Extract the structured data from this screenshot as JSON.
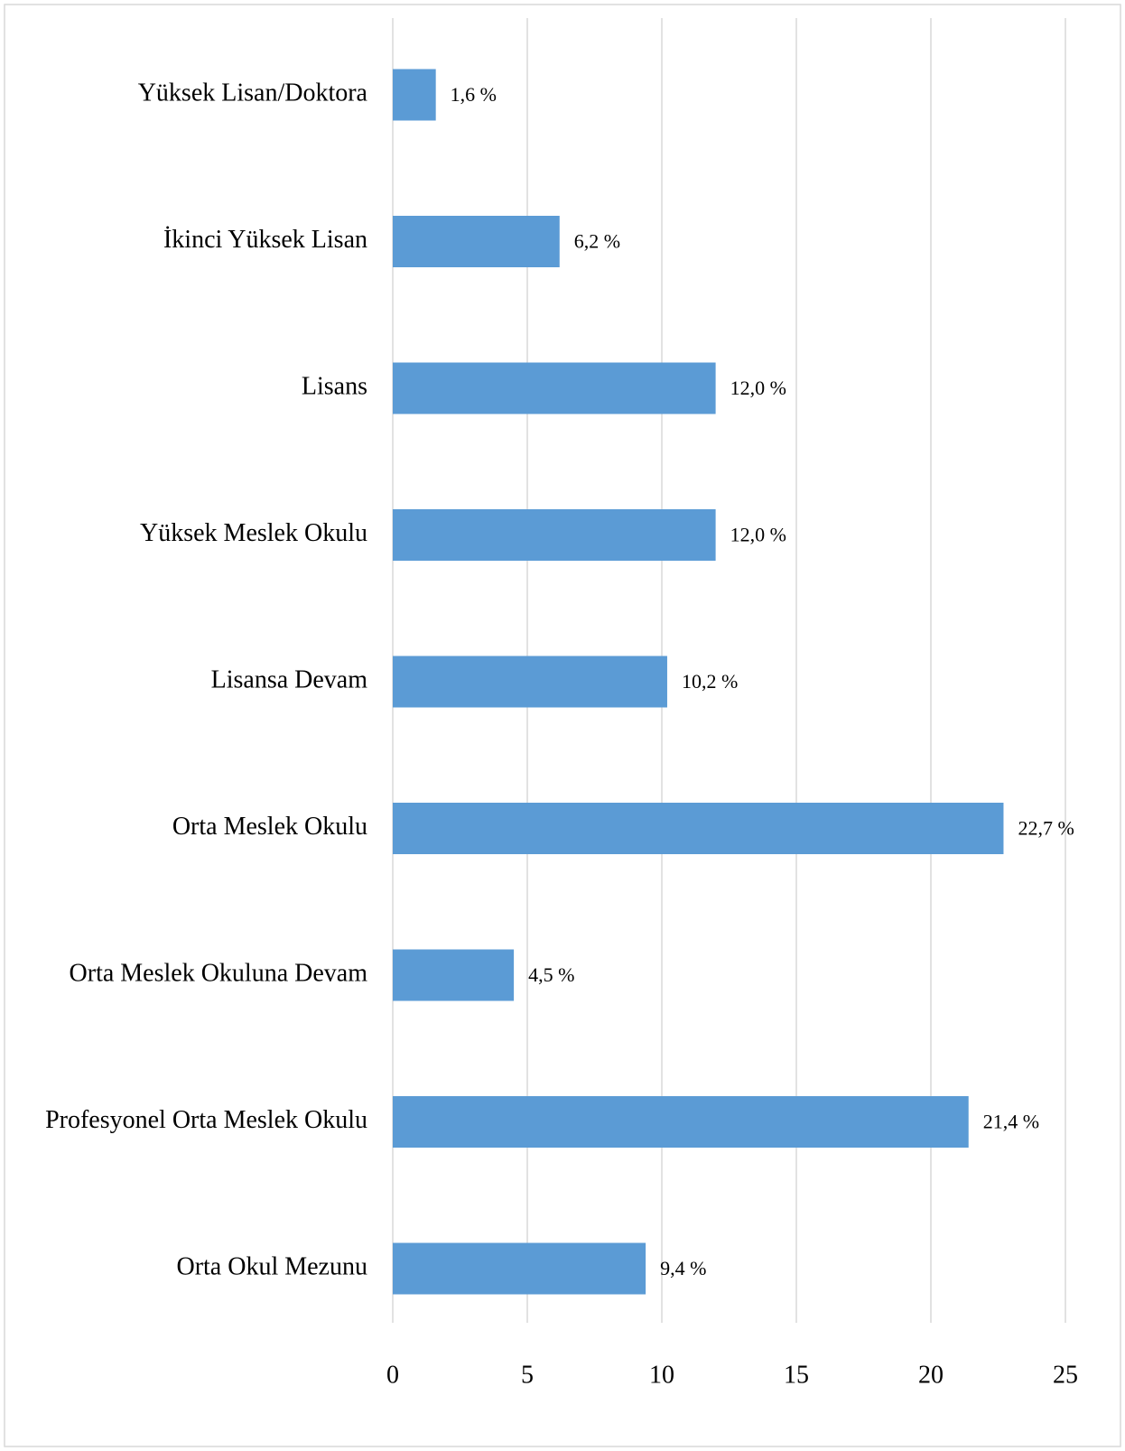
{
  "chart_data": {
    "type": "bar",
    "orientation": "horizontal",
    "categories": [
      "Yüksek Lisan/Doktora",
      "İkinci Yüksek Lisan",
      "Lisans",
      "Yüksek Meslek Okulu",
      "Lisansa Devam",
      "Orta Meslek Okulu",
      "Orta Meslek Okuluna Devam",
      "Profesyonel Orta Meslek Okulu",
      "Orta Okul Mezunu"
    ],
    "values": [
      1.6,
      6.2,
      12.0,
      12.0,
      10.2,
      22.7,
      4.5,
      21.4,
      9.4
    ],
    "value_labels": [
      "1,6 %",
      "6,2 %",
      "12,0 %",
      "12,0 %",
      "10,2 %",
      "22,7 %",
      "4,5 %",
      "21,4 %",
      "9,4 %"
    ],
    "color": "#5b9bd5",
    "xlim": [
      0,
      25
    ],
    "xticks": [
      0,
      5,
      10,
      15,
      20,
      25
    ],
    "grid": true
  }
}
